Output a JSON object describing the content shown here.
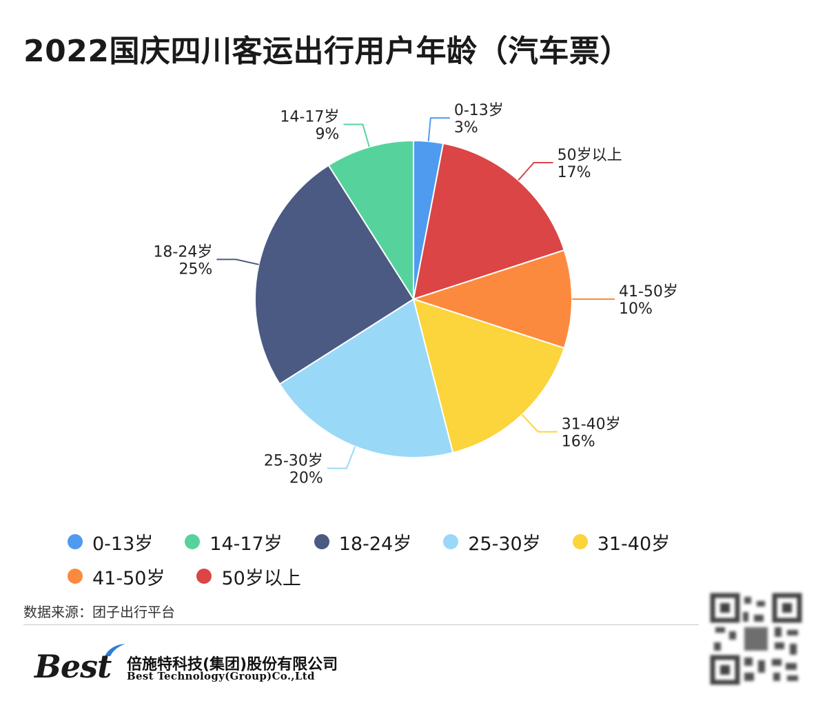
{
  "title": "2022国庆四川客运出行用户年龄（汽车票）",
  "source": "数据来源：团子出行平台",
  "company": {
    "logo_text": "Best",
    "name_cn": "倍施特科技(集团)股份有限公司",
    "name_en": "Best Technology(Group)Co.,Ltd"
  },
  "chart_data": {
    "type": "pie",
    "title": "2022国庆四川客运出行用户年龄（汽车票）",
    "legend_position": "bottom",
    "categories": [
      "0-13岁",
      "14-17岁",
      "18-24岁",
      "25-30岁",
      "31-40岁",
      "41-50岁",
      "50岁以上"
    ],
    "values": [
      3,
      9,
      25,
      20,
      16,
      10,
      17
    ],
    "value_labels": [
      "3%",
      "9%",
      "25%",
      "20%",
      "16%",
      "10%",
      "17%"
    ],
    "colors": [
      "#4e9bef",
      "#56d39c",
      "#4a5a82",
      "#9ad8f8",
      "#fcd43b",
      "#fc8a3e",
      "#db4545"
    ],
    "draw_order": [
      0,
      6,
      5,
      4,
      3,
      2,
      1
    ],
    "direction": "clockwise-from-top"
  }
}
